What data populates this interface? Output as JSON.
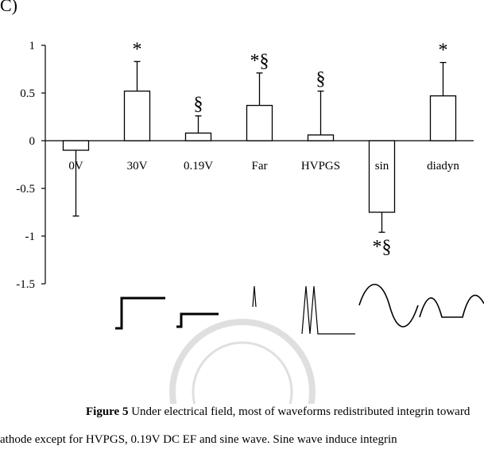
{
  "panel_label": "C)",
  "chart_data": {
    "type": "bar",
    "categories": [
      "0V",
      "30V",
      "0.19V",
      "Far",
      "HVPGS",
      "sin",
      "diadyn"
    ],
    "values": [
      -0.1,
      0.52,
      0.08,
      0.37,
      0.06,
      -0.75,
      0.47
    ],
    "error_bars": [
      0.69,
      0.31,
      0.18,
      0.34,
      0.46,
      0.21,
      0.35
    ],
    "annotations": [
      "",
      "*",
      "§",
      "*§",
      "§",
      "*§",
      "*"
    ],
    "ylim": [
      -1.5,
      1
    ],
    "yticks": [
      1,
      0.5,
      0,
      -0.5,
      -1,
      -1.5
    ],
    "ytick_labels": [
      "1",
      "0.5",
      "0",
      "-0.5",
      "-1",
      "-1.5"
    ],
    "title": "",
    "xlabel": "",
    "ylabel": "",
    "grid": false,
    "bar_fill": "#ffffff",
    "bar_stroke": "#000000"
  },
  "waveform_icons": [
    "step-dc-30v",
    "step-dc-0.19v",
    "single-spike-far",
    "twin-spike-hvpgs",
    "sine-wave",
    "diadynamic-wave"
  ],
  "caption": {
    "label": "Figure 5",
    "line1": " Under electrical field, most of waveforms redistributed integrin toward",
    "line2": "athode except for HVPGS, 0.19V DC EF and sine wave. Sine wave induce integrin"
  }
}
